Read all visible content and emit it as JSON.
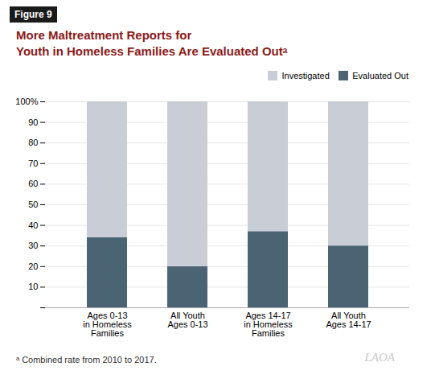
{
  "chart_data": {
    "type": "bar",
    "title": "More Maltreatment Reports for\nYouth in Homeless Families Are Evaluated Outᵃ",
    "annotations": [
      "Figure 9",
      "ᵃ Combined rate from 2010 to 2017.",
      "LAOA"
    ],
    "categories": [
      "Ages 0-13\nin Homeless\nFamilies",
      "All Youth\nAges 0-13",
      "Ages 14-17\nin Homeless\nFamilies",
      "All Youth\nAges 14-17"
    ],
    "series": [
      {
        "name": "Evaluated Out",
        "color": "#4a6474",
        "values": [
          34,
          20,
          37,
          30
        ]
      },
      {
        "name": "Investigated",
        "color": "#c8cdd6",
        "values": [
          66,
          80,
          63,
          70
        ]
      }
    ],
    "stacked": true,
    "ylim": [
      0,
      100
    ],
    "yticks": [
      {
        "value": 0,
        "label": ""
      },
      10,
      20,
      30,
      40,
      50,
      60,
      70,
      80,
      90,
      {
        "value": 100,
        "label": "100%"
      }
    ],
    "grid": true,
    "legend": "upper right"
  }
}
